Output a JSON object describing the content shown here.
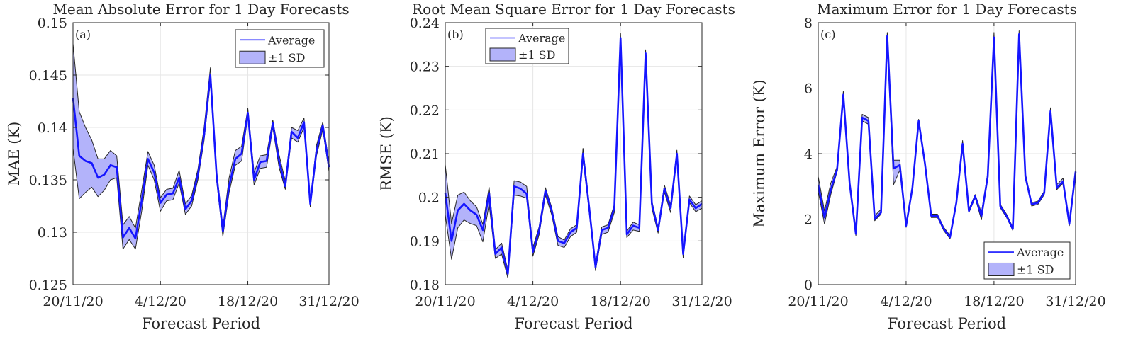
{
  "figure": {
    "line_color": "#1515ff",
    "band_fill": "#b3b3fa",
    "band_edge": "#262626",
    "grid_color": "#e6e6e6"
  },
  "chart_data": [
    {
      "type": "line",
      "panel_label": "(a)",
      "title": "Mean Absolute Error for 1 Day Forecasts",
      "xlabel": "Forecast Period",
      "ylabel": "MAE (K)",
      "x_ticks": [
        "20/11/20",
        "4/12/20",
        "18/12/20",
        "31/12/20"
      ],
      "x_tick_index": [
        0,
        14,
        28,
        41
      ],
      "y_ticks": [
        "0.125",
        "0.13",
        "0.135",
        "0.14",
        "0.145",
        "0.15"
      ],
      "ylim": [
        0.125,
        0.15
      ],
      "grid": true,
      "legend_placement": "top-right",
      "legend": [
        "Average",
        "±1 SD"
      ],
      "average": [
        0.1428,
        0.1373,
        0.1368,
        0.1366,
        0.1352,
        0.1355,
        0.1364,
        0.1362,
        0.1295,
        0.1304,
        0.1294,
        0.133,
        0.137,
        0.1357,
        0.1328,
        0.1336,
        0.1337,
        0.1352,
        0.1322,
        0.133,
        0.1355,
        0.1393,
        0.145,
        0.1354,
        0.1301,
        0.1344,
        0.137,
        0.1375,
        0.1414,
        0.135,
        0.1367,
        0.1368,
        0.1404,
        0.1368,
        0.1344,
        0.1396,
        0.139,
        0.1405,
        0.1327,
        0.1378,
        0.1402,
        0.1362
      ],
      "upper": [
        0.148,
        0.1415,
        0.14,
        0.1388,
        0.137,
        0.137,
        0.1378,
        0.1373,
        0.1307,
        0.1315,
        0.1304,
        0.134,
        0.1377,
        0.1364,
        0.1333,
        0.1341,
        0.1342,
        0.1359,
        0.1327,
        0.1335,
        0.136,
        0.14,
        0.1457,
        0.1359,
        0.1305,
        0.1352,
        0.1378,
        0.1382,
        0.1418,
        0.1357,
        0.1373,
        0.1374,
        0.1407,
        0.1374,
        0.1349,
        0.14,
        0.1397,
        0.1409,
        0.133,
        0.1383,
        0.1405,
        0.1367
      ],
      "lower": [
        0.138,
        0.1332,
        0.1338,
        0.1343,
        0.1334,
        0.134,
        0.135,
        0.1352,
        0.1284,
        0.1293,
        0.1284,
        0.132,
        0.1364,
        0.135,
        0.132,
        0.133,
        0.1331,
        0.1347,
        0.1317,
        0.1325,
        0.135,
        0.1388,
        0.1444,
        0.1349,
        0.1296,
        0.1338,
        0.1364,
        0.1368,
        0.1411,
        0.1345,
        0.1361,
        0.1362,
        0.14,
        0.1362,
        0.1341,
        0.139,
        0.1386,
        0.14,
        0.1324,
        0.1373,
        0.1398,
        0.1358
      ]
    },
    {
      "type": "line",
      "panel_label": "(b)",
      "title": "Root Mean Square Error for 1 Day Forecasts",
      "xlabel": "Forecast Period",
      "ylabel": "RMSE (K)",
      "x_ticks": [
        "20/11/20",
        "4/12/20",
        "18/12/20",
        "31/12/20"
      ],
      "x_tick_index": [
        0,
        14,
        28,
        41
      ],
      "y_ticks": [
        "0.18",
        "0.19",
        "0.2",
        "0.21",
        "0.22",
        "0.23",
        "0.24"
      ],
      "ylim": [
        0.18,
        0.24
      ],
      "grid": true,
      "legend_placement": "top-left",
      "legend": [
        "Average",
        "±1 SD"
      ],
      "average": [
        0.201,
        0.19,
        0.197,
        0.1985,
        0.197,
        0.196,
        0.1925,
        0.201,
        0.187,
        0.1885,
        0.1825,
        0.2025,
        0.202,
        0.2008,
        0.1875,
        0.1925,
        0.2015,
        0.197,
        0.19,
        0.1895,
        0.192,
        0.193,
        0.21,
        0.1975,
        0.184,
        0.1925,
        0.193,
        0.1975,
        0.2365,
        0.1915,
        0.1935,
        0.193,
        0.233,
        0.1985,
        0.1925,
        0.202,
        0.1975,
        0.21,
        0.187,
        0.1995,
        0.1975,
        0.1985
      ],
      "upper": [
        0.2075,
        0.194,
        0.2005,
        0.2012,
        0.1992,
        0.1978,
        0.1938,
        0.2023,
        0.188,
        0.1895,
        0.1833,
        0.2038,
        0.2035,
        0.2025,
        0.1885,
        0.1933,
        0.2022,
        0.1977,
        0.191,
        0.1902,
        0.1928,
        0.1937,
        0.2112,
        0.1983,
        0.1847,
        0.1932,
        0.1937,
        0.1983,
        0.2375,
        0.1922,
        0.1943,
        0.1937,
        0.2338,
        0.1992,
        0.193,
        0.2028,
        0.1982,
        0.2108,
        0.1876,
        0.2003,
        0.1983,
        0.1992
      ],
      "lower": [
        0.196,
        0.1858,
        0.193,
        0.1948,
        0.194,
        0.1935,
        0.1898,
        0.1985,
        0.186,
        0.187,
        0.1815,
        0.2005,
        0.2003,
        0.1998,
        0.1865,
        0.1915,
        0.2005,
        0.196,
        0.189,
        0.1885,
        0.191,
        0.192,
        0.2088,
        0.1965,
        0.1832,
        0.1915,
        0.192,
        0.1965,
        0.2355,
        0.1908,
        0.1925,
        0.1922,
        0.2322,
        0.1975,
        0.1918,
        0.2012,
        0.1965,
        0.2092,
        0.1862,
        0.1988,
        0.1967,
        0.1975
      ]
    },
    {
      "type": "line",
      "panel_label": "(c)",
      "title": "Maximum Error for 1 Day Forecasts",
      "xlabel": "Forecast Period",
      "ylabel": "Maximum Error (K)",
      "x_ticks": [
        "20/11/20",
        "4/12/20",
        "18/12/20",
        "31/12/20"
      ],
      "x_tick_index": [
        0,
        14,
        28,
        41
      ],
      "y_ticks": [
        "0",
        "2",
        "4",
        "6",
        "8"
      ],
      "ylim": [
        0,
        8
      ],
      "grid": true,
      "legend_placement": "bottom-right",
      "legend": [
        "Average",
        "±1 SD"
      ],
      "average": [
        3.05,
        2.05,
        2.9,
        3.5,
        5.8,
        3.1,
        1.55,
        5.1,
        5.0,
        2.0,
        2.2,
        7.6,
        3.55,
        3.65,
        1.8,
        2.95,
        5.0,
        3.7,
        2.1,
        2.1,
        1.7,
        1.45,
        2.5,
        4.3,
        2.25,
        2.7,
        2.1,
        3.3,
        7.55,
        2.4,
        2.1,
        1.7,
        7.65,
        3.3,
        2.45,
        2.5,
        2.8,
        5.3,
        2.95,
        3.15,
        1.85,
        3.45
      ],
      "upper": [
        3.3,
        2.25,
        3.1,
        3.6,
        5.9,
        3.2,
        1.6,
        5.2,
        5.1,
        2.1,
        2.3,
        7.7,
        3.8,
        3.8,
        1.85,
        3.0,
        5.05,
        3.75,
        2.15,
        2.15,
        1.75,
        1.5,
        2.55,
        4.4,
        2.3,
        2.75,
        2.2,
        3.4,
        7.7,
        2.45,
        2.15,
        1.75,
        7.75,
        3.4,
        2.5,
        2.55,
        2.85,
        5.4,
        3.05,
        3.25,
        1.9,
        3.5
      ],
      "lower": [
        2.85,
        1.85,
        2.75,
        3.45,
        5.7,
        3.05,
        1.5,
        5.0,
        4.9,
        1.95,
        2.15,
        7.5,
        3.05,
        3.5,
        1.75,
        2.9,
        4.95,
        3.65,
        2.05,
        2.05,
        1.65,
        1.4,
        2.45,
        4.25,
        2.2,
        2.65,
        1.98,
        3.25,
        7.5,
        2.35,
        2.05,
        1.65,
        7.55,
        3.25,
        2.4,
        2.45,
        2.75,
        5.25,
        2.9,
        3.1,
        1.8,
        3.4
      ]
    }
  ]
}
